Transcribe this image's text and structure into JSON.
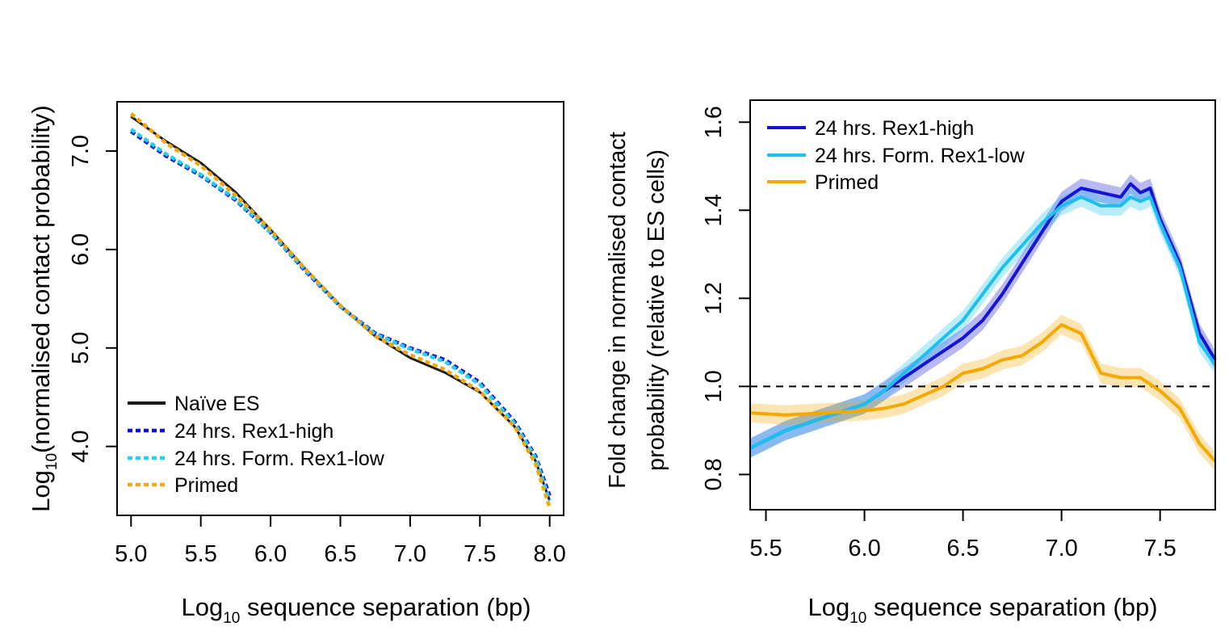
{
  "chart_data": [
    {
      "type": "line",
      "title": "",
      "xlabel": "Log10 sequence separation (bp)",
      "xlabel_base": "Log",
      "xlabel_sub": "10",
      "xlabel_rest": " sequence separation (bp)",
      "ylabel": "Log10(normalised contact probability)",
      "ylabel_base": "Log",
      "ylabel_sub": "10",
      "ylabel_rest": "(normalised contact probability)",
      "xlim": [
        4.9,
        8.1
      ],
      "ylim": [
        3.3,
        7.5
      ],
      "xticks": [
        5.0,
        5.5,
        6.0,
        6.5,
        7.0,
        7.5,
        8.0
      ],
      "xtick_labels": [
        "5.0",
        "5.5",
        "6.0",
        "6.5",
        "7.0",
        "7.5",
        "8.0"
      ],
      "yticks": [
        4.0,
        5.0,
        6.0,
        7.0
      ],
      "ytick_labels": [
        "4.0",
        "5.0",
        "6.0",
        "7.0"
      ],
      "legend_position": "bottom-left",
      "series": [
        {
          "name": "Naïve ES",
          "color": "#1a1a1a",
          "style": "solid",
          "x": [
            5.0,
            5.25,
            5.5,
            5.75,
            6.0,
            6.25,
            6.5,
            6.75,
            7.0,
            7.25,
            7.5,
            7.75,
            7.9,
            8.0
          ],
          "y": [
            7.35,
            7.1,
            6.88,
            6.58,
            6.2,
            5.8,
            5.43,
            5.12,
            4.9,
            4.75,
            4.55,
            4.2,
            3.85,
            3.45
          ]
        },
        {
          "name": "24 hrs. Rex1-high",
          "color": "#1010e0",
          "style": "dotted",
          "x": [
            5.0,
            5.25,
            5.5,
            5.75,
            6.0,
            6.25,
            6.5,
            6.75,
            7.0,
            7.25,
            7.5,
            7.75,
            7.9,
            8.0
          ],
          "y": [
            7.2,
            6.95,
            6.75,
            6.5,
            6.17,
            5.78,
            5.42,
            5.15,
            5.0,
            4.88,
            4.65,
            4.25,
            3.9,
            3.5
          ]
        },
        {
          "name": "24 hrs. Form. Rex1-low",
          "color": "#22d0f0",
          "style": "dotted",
          "x": [
            5.0,
            5.25,
            5.5,
            5.75,
            6.0,
            6.25,
            6.5,
            6.75,
            7.0,
            7.25,
            7.5,
            7.75,
            7.9,
            8.0
          ],
          "y": [
            7.22,
            6.97,
            6.76,
            6.51,
            6.17,
            5.79,
            5.42,
            5.14,
            4.99,
            4.86,
            4.63,
            4.23,
            3.88,
            3.45
          ]
        },
        {
          "name": "Primed",
          "color": "#f0a810",
          "style": "dotted",
          "x": [
            5.0,
            5.25,
            5.5,
            5.75,
            6.0,
            6.25,
            6.5,
            6.75,
            7.0,
            7.25,
            7.5,
            7.75,
            7.9,
            8.0
          ],
          "y": [
            7.38,
            7.08,
            6.85,
            6.55,
            6.2,
            5.8,
            5.43,
            5.12,
            4.93,
            4.78,
            4.56,
            4.2,
            3.82,
            3.38
          ]
        }
      ]
    },
    {
      "type": "line",
      "title": "",
      "xlabel": "Log10 sequence separation (bp)",
      "xlabel_base": "Log",
      "xlabel_sub": "10",
      "xlabel_rest": " sequence separation (bp)",
      "ylabel_line1": "Fold  change in normalised contact",
      "ylabel_line2": "probability (relative to ES cells)",
      "xlim": [
        5.42,
        7.78
      ],
      "ylim": [
        0.72,
        1.65
      ],
      "xticks": [
        5.5,
        6.0,
        6.5,
        7.0,
        7.5
      ],
      "xtick_labels": [
        "5.5",
        "6.0",
        "6.5",
        "7.0",
        "7.5"
      ],
      "yticks": [
        0.8,
        1.0,
        1.2,
        1.4,
        1.6
      ],
      "ytick_labels": [
        "0.8",
        "1.0",
        "1.2",
        "1.4",
        "1.6"
      ],
      "reference_line": {
        "y": 1.0,
        "style": "dashed",
        "color": "#000000"
      },
      "legend_position": "top-left",
      "series": [
        {
          "name": "24 hrs. Rex1-high",
          "color": "#1414d8",
          "x": [
            5.42,
            5.6,
            5.8,
            6.0,
            6.1,
            6.2,
            6.3,
            6.4,
            6.5,
            6.6,
            6.7,
            6.8,
            6.9,
            7.0,
            7.1,
            7.2,
            7.3,
            7.35,
            7.4,
            7.45,
            7.5,
            7.6,
            7.7,
            7.78
          ],
          "y": [
            0.86,
            0.9,
            0.93,
            0.96,
            0.99,
            1.02,
            1.05,
            1.08,
            1.11,
            1.15,
            1.21,
            1.28,
            1.35,
            1.42,
            1.45,
            1.44,
            1.43,
            1.46,
            1.44,
            1.45,
            1.38,
            1.28,
            1.12,
            1.06
          ]
        },
        {
          "name": "24 hrs. Form. Rex1-low",
          "color": "#19c0f0",
          "x": [
            5.42,
            5.6,
            5.8,
            6.0,
            6.1,
            6.2,
            6.3,
            6.4,
            6.5,
            6.6,
            6.7,
            6.8,
            6.9,
            7.0,
            7.1,
            7.2,
            7.3,
            7.35,
            7.4,
            7.45,
            7.5,
            7.6,
            7.7,
            7.78
          ],
          "y": [
            0.86,
            0.9,
            0.93,
            0.96,
            0.99,
            1.03,
            1.07,
            1.11,
            1.15,
            1.21,
            1.27,
            1.32,
            1.37,
            1.41,
            1.43,
            1.41,
            1.41,
            1.43,
            1.42,
            1.43,
            1.37,
            1.27,
            1.1,
            1.05
          ]
        },
        {
          "name": "Primed",
          "color": "#f5a800",
          "x": [
            5.42,
            5.6,
            5.8,
            6.0,
            6.1,
            6.2,
            6.3,
            6.4,
            6.5,
            6.6,
            6.7,
            6.8,
            6.9,
            7.0,
            7.1,
            7.2,
            7.3,
            7.4,
            7.5,
            7.6,
            7.7,
            7.78
          ],
          "y": [
            0.94,
            0.935,
            0.94,
            0.945,
            0.95,
            0.96,
            0.98,
            1.0,
            1.03,
            1.04,
            1.06,
            1.07,
            1.1,
            1.14,
            1.12,
            1.03,
            1.02,
            1.02,
            0.99,
            0.95,
            0.87,
            0.83
          ]
        }
      ]
    }
  ]
}
